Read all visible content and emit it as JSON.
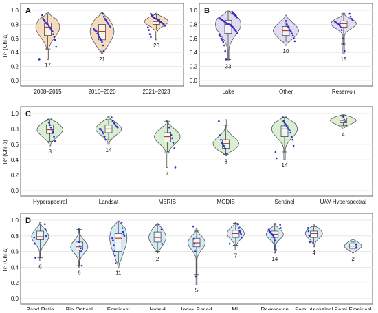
{
  "chart_data": [
    {
      "type": "violin",
      "panel_label": "A",
      "ylabel": "R² (Chl-a)",
      "ylim": [
        0,
        1.0
      ],
      "yticks": [
        "0.0",
        "0.2",
        "0.4",
        "0.6",
        "0.8",
        "1.0"
      ],
      "color": "#f5d6b3",
      "categories": [
        "2008–2015",
        "2016–2020",
        "2021–2023"
      ],
      "counts": [
        "17",
        "21",
        "20"
      ],
      "series": [
        {
          "name": "2008–2015",
          "q1": 0.64,
          "median": 0.76,
          "q3": 0.82,
          "wmin": 0.45,
          "wmax": 0.95,
          "vmin": 0.3,
          "vmax": 0.97,
          "points": [
            0.3,
            0.48,
            0.58,
            0.62,
            0.66,
            0.7,
            0.72,
            0.74,
            0.76,
            0.78,
            0.8,
            0.81,
            0.82,
            0.84,
            0.86,
            0.88,
            0.93
          ]
        },
        {
          "name": "2016–2020",
          "q1": 0.58,
          "median": 0.7,
          "q3": 0.8,
          "wmin": 0.42,
          "wmax": 0.95,
          "vmin": 0.38,
          "vmax": 0.97,
          "points": [
            0.42,
            0.5,
            0.55,
            0.58,
            0.6,
            0.62,
            0.65,
            0.67,
            0.7,
            0.71,
            0.72,
            0.74,
            0.76,
            0.78,
            0.8,
            0.82,
            0.84,
            0.86,
            0.88,
            0.91,
            0.95
          ]
        },
        {
          "name": "2021–2023",
          "q1": 0.8,
          "median": 0.84,
          "q3": 0.88,
          "wmin": 0.72,
          "wmax": 0.94,
          "vmin": 0.58,
          "vmax": 0.96,
          "points": [
            0.62,
            0.66,
            0.72,
            0.76,
            0.78,
            0.8,
            0.81,
            0.82,
            0.83,
            0.84,
            0.85,
            0.86,
            0.87,
            0.88,
            0.88,
            0.89,
            0.9,
            0.91,
            0.93,
            0.95
          ]
        }
      ]
    },
    {
      "type": "violin",
      "panel_label": "B",
      "ylabel": "",
      "ylim": [
        0,
        1.0
      ],
      "yticks": [
        "0.0",
        "0.2",
        "0.4",
        "0.6",
        "0.8",
        "1.0"
      ],
      "color": "#ddd6f0",
      "categories": [
        "Lake",
        "Other",
        "Reservoir"
      ],
      "counts": [
        "33",
        "10",
        "15"
      ],
      "series": [
        {
          "name": "Lake",
          "q1": 0.67,
          "median": 0.8,
          "q3": 0.86,
          "wmin": 0.3,
          "wmax": 0.98,
          "vmin": 0.28,
          "vmax": 0.99,
          "points": [
            0.3,
            0.42,
            0.5,
            0.55,
            0.58,
            0.6,
            0.63,
            0.65,
            0.67,
            0.7,
            0.72,
            0.74,
            0.76,
            0.77,
            0.78,
            0.79,
            0.8,
            0.8,
            0.81,
            0.82,
            0.83,
            0.84,
            0.85,
            0.86,
            0.87,
            0.88,
            0.89,
            0.9,
            0.92,
            0.93,
            0.95,
            0.96,
            0.98
          ]
        },
        {
          "name": "Other",
          "q1": 0.64,
          "median": 0.71,
          "q3": 0.77,
          "wmin": 0.56,
          "wmax": 0.85,
          "vmin": 0.5,
          "vmax": 0.93,
          "points": [
            0.56,
            0.6,
            0.64,
            0.67,
            0.7,
            0.72,
            0.75,
            0.77,
            0.8,
            0.85
          ]
        },
        {
          "name": "Reservoir",
          "q1": 0.76,
          "median": 0.81,
          "q3": 0.85,
          "wmin": 0.52,
          "wmax": 0.95,
          "vmin": 0.38,
          "vmax": 0.96,
          "points": [
            0.42,
            0.52,
            0.6,
            0.72,
            0.76,
            0.78,
            0.8,
            0.81,
            0.82,
            0.83,
            0.84,
            0.86,
            0.88,
            0.91,
            0.95
          ]
        }
      ]
    },
    {
      "type": "violin",
      "panel_label": "C",
      "ylabel": "R² (Chl-a)",
      "ylim": [
        0,
        1.0
      ],
      "yticks": [
        "0.0",
        "0.2",
        "0.4",
        "0.6",
        "0.8",
        "1.0"
      ],
      "color": "#d4ebcc",
      "categories": [
        "Hyperspectral",
        "Landsat",
        "MERIS",
        "MODIS",
        "Sentinel",
        "UAV-Hyperspectral"
      ],
      "counts": [
        "8",
        "14",
        "7",
        "8",
        "14",
        "4"
      ],
      "series": [
        {
          "name": "Hyperspectral",
          "q1": 0.74,
          "median": 0.79,
          "q3": 0.85,
          "wmin": 0.64,
          "wmax": 0.92,
          "vmin": 0.58,
          "vmax": 0.94,
          "points": [
            0.64,
            0.7,
            0.76,
            0.79,
            0.82,
            0.85,
            0.88,
            0.92
          ]
        },
        {
          "name": "Landsat",
          "q1": 0.75,
          "median": 0.8,
          "q3": 0.85,
          "wmin": 0.66,
          "wmax": 0.92,
          "vmin": 0.6,
          "vmax": 0.96,
          "points": [
            0.66,
            0.7,
            0.74,
            0.76,
            0.78,
            0.8,
            0.8,
            0.82,
            0.83,
            0.85,
            0.87,
            0.88,
            0.9,
            0.95
          ]
        },
        {
          "name": "MERIS",
          "q1": 0.63,
          "median": 0.7,
          "q3": 0.75,
          "wmin": 0.5,
          "wmax": 0.9,
          "vmin": 0.3,
          "vmax": 0.91,
          "points": [
            0.3,
            0.55,
            0.62,
            0.68,
            0.72,
            0.75,
            0.82
          ]
        },
        {
          "name": "MODIS",
          "q1": 0.55,
          "median": 0.61,
          "q3": 0.66,
          "wmin": 0.47,
          "wmax": 0.85,
          "vmin": 0.45,
          "vmax": 0.92,
          "points": [
            0.48,
            0.55,
            0.58,
            0.6,
            0.62,
            0.66,
            0.72,
            0.9
          ]
        },
        {
          "name": "Sentinel",
          "q1": 0.7,
          "median": 0.8,
          "q3": 0.84,
          "wmin": 0.5,
          "wmax": 0.95,
          "vmin": 0.4,
          "vmax": 0.97,
          "points": [
            0.42,
            0.5,
            0.58,
            0.66,
            0.7,
            0.75,
            0.78,
            0.8,
            0.82,
            0.84,
            0.86,
            0.88,
            0.9,
            0.95
          ]
        },
        {
          "name": "UAV-Hyperspectral",
          "q1": 0.88,
          "median": 0.91,
          "q3": 0.94,
          "wmin": 0.84,
          "wmax": 0.98,
          "vmin": 0.8,
          "vmax": 0.99,
          "points": [
            0.85,
            0.89,
            0.92,
            0.96
          ]
        }
      ]
    },
    {
      "type": "violin",
      "panel_label": "D",
      "ylabel": "R² (Chl-a)",
      "ylim": [
        0,
        1.0
      ],
      "yticks": [
        "0.0",
        "0.2",
        "0.4",
        "0.6",
        "0.8",
        "1.0"
      ],
      "color": "#cde6f2",
      "categories": [
        "Band-Ratio",
        "Bio-Optical",
        "Empirical",
        "Hybrid",
        "Index-Based",
        "ML",
        "Regression",
        "Semi-Analytical",
        "Semi-Empirical"
      ],
      "counts": [
        "6",
        "6",
        "11",
        "2",
        "5",
        "7",
        "14",
        "4",
        "2"
      ],
      "series": [
        {
          "name": "Band-Ratio",
          "q1": 0.75,
          "median": 0.79,
          "q3": 0.86,
          "wmin": 0.52,
          "wmax": 0.95,
          "vmin": 0.48,
          "vmax": 0.97,
          "points": [
            0.52,
            0.7,
            0.78,
            0.8,
            0.88,
            0.95
          ]
        },
        {
          "name": "Bio-Optical",
          "q1": 0.62,
          "median": 0.66,
          "q3": 0.72,
          "wmin": 0.42,
          "wmax": 0.88,
          "vmin": 0.4,
          "vmax": 0.9,
          "points": [
            0.42,
            0.6,
            0.64,
            0.67,
            0.72,
            0.88
          ]
        },
        {
          "name": "Empirical",
          "q1": 0.6,
          "median": 0.77,
          "q3": 0.83,
          "wmin": 0.45,
          "wmax": 0.98,
          "vmin": 0.4,
          "vmax": 0.99,
          "points": [
            0.45,
            0.55,
            0.6,
            0.68,
            0.74,
            0.77,
            0.8,
            0.82,
            0.85,
            0.9,
            0.97
          ]
        },
        {
          "name": "Hybrid",
          "q1": 0.72,
          "median": 0.78,
          "q3": 0.85,
          "wmin": 0.6,
          "wmax": 0.94,
          "vmin": 0.58,
          "vmax": 0.96,
          "points": [
            0.7,
            0.88
          ]
        },
        {
          "name": "Index-Based",
          "q1": 0.66,
          "median": 0.71,
          "q3": 0.77,
          "wmin": 0.3,
          "wmax": 0.86,
          "vmin": 0.18,
          "vmax": 0.9,
          "points": [
            0.28,
            0.6,
            0.7,
            0.76,
            0.92
          ]
        },
        {
          "name": "ML",
          "q1": 0.78,
          "median": 0.83,
          "q3": 0.87,
          "wmin": 0.68,
          "wmax": 0.96,
          "vmin": 0.62,
          "vmax": 0.97,
          "points": [
            0.7,
            0.78,
            0.82,
            0.84,
            0.86,
            0.9,
            0.95
          ]
        },
        {
          "name": "Regression",
          "q1": 0.78,
          "median": 0.82,
          "q3": 0.86,
          "wmin": 0.62,
          "wmax": 0.95,
          "vmin": 0.58,
          "vmax": 0.96,
          "points": [
            0.62,
            0.68,
            0.74,
            0.78,
            0.8,
            0.81,
            0.82,
            0.83,
            0.84,
            0.85,
            0.86,
            0.88,
            0.9,
            0.94
          ]
        },
        {
          "name": "Semi-Analytical",
          "q1": 0.78,
          "median": 0.83,
          "q3": 0.86,
          "wmin": 0.7,
          "wmax": 0.92,
          "vmin": 0.66,
          "vmax": 0.94,
          "points": [
            0.72,
            0.8,
            0.86,
            0.9
          ]
        },
        {
          "name": "Semi-Empirical",
          "q1": 0.64,
          "median": 0.67,
          "q3": 0.7,
          "wmin": 0.62,
          "wmax": 0.72,
          "vmin": 0.58,
          "vmax": 0.76,
          "points": [
            0.65,
            0.69
          ]
        }
      ]
    }
  ]
}
